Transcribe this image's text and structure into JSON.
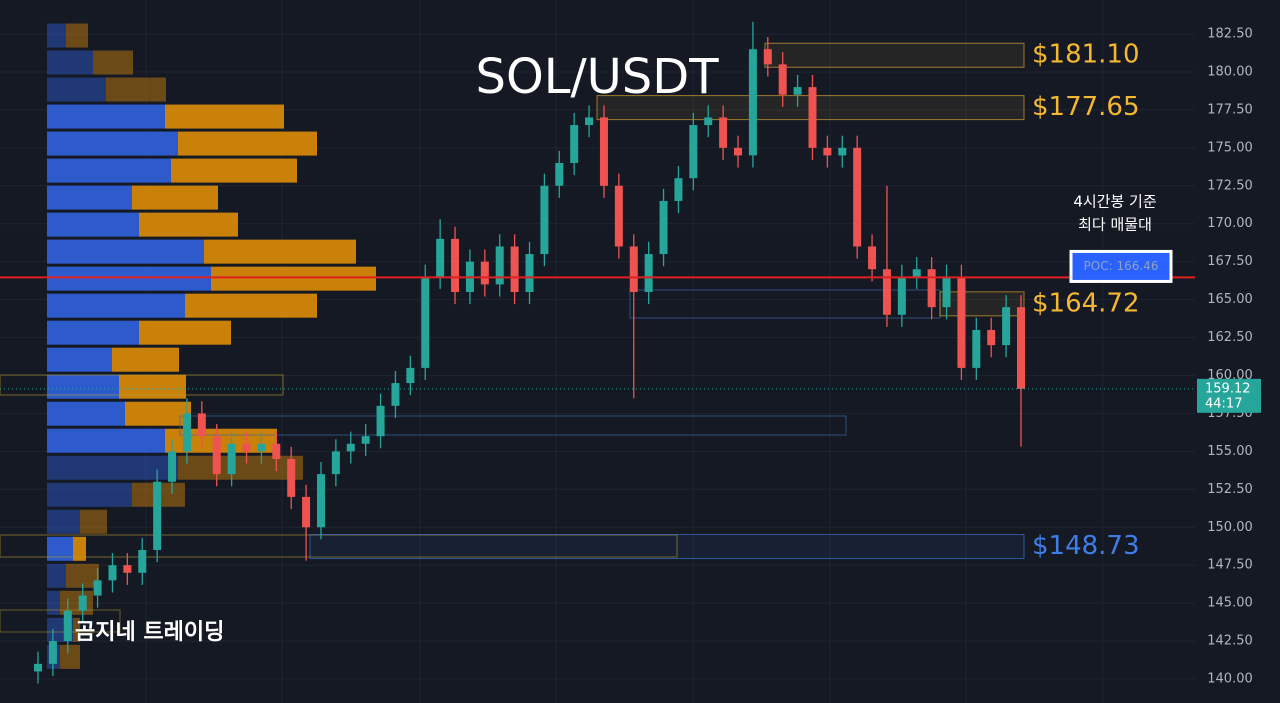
{
  "chart_data": {
    "type": "candlestick",
    "title": "SOL/USDT",
    "watermark": "곰지네 트레이딩",
    "ylim": [
      138.42,
      184.74
    ],
    "yticks": [
      {
        "value": 140,
        "label": "140.00"
      },
      {
        "value": 142.5,
        "label": "142.50"
      },
      {
        "value": 145,
        "label": "145.00"
      },
      {
        "value": 147.5,
        "label": "147.50"
      },
      {
        "value": 150,
        "label": "150.00"
      },
      {
        "value": 152.5,
        "label": "152.50"
      },
      {
        "value": 155,
        "label": "155.00"
      },
      {
        "value": 157.5,
        "label": "157.50"
      },
      {
        "value": 160,
        "label": "160.00"
      },
      {
        "value": 162.5,
        "label": "162.50"
      },
      {
        "value": 165,
        "label": "165.00"
      },
      {
        "value": 167.5,
        "label": "167.50"
      },
      {
        "value": 170,
        "label": "170.00"
      },
      {
        "value": 172.5,
        "label": "172.50"
      },
      {
        "value": 175,
        "label": "175.00"
      },
      {
        "value": 177.5,
        "label": "177.50"
      },
      {
        "value": 180,
        "label": "180.00"
      },
      {
        "value": 182.5,
        "label": "182.50"
      }
    ],
    "grid": true,
    "up_color": "#26a69a",
    "down_color": "#ef5350",
    "open": [
      140.5,
      141.0,
      142.5,
      144.5,
      145.5,
      146.5,
      147.5,
      147.0,
      148.5,
      153.0,
      155.0,
      157.5,
      156.0,
      153.5,
      155.5,
      155.0,
      155.5,
      154.5,
      152.0,
      150.0,
      153.5,
      155.0,
      155.5,
      156.0,
      158.0,
      159.5,
      160.5,
      166.5,
      169.0,
      165.5,
      167.5,
      166.0,
      168.5,
      165.5,
      168.0,
      172.5,
      174.0,
      176.5,
      177.0,
      172.5,
      168.5,
      165.5,
      168.0,
      171.5,
      173.0,
      176.5,
      177.0,
      175.0,
      174.5,
      181.5,
      180.5,
      178.5,
      179.0,
      175.0,
      174.5,
      175.0,
      168.5,
      167.0,
      164.0,
      166.5,
      167.0,
      164.5,
      166.5,
      160.5,
      163.0,
      162.0,
      164.5
    ],
    "high": [
      141.8,
      143.3,
      145.3,
      146.3,
      147.3,
      148.3,
      148.3,
      149.3,
      153.8,
      155.8,
      158.5,
      158.3,
      156.8,
      156.3,
      156.3,
      156.3,
      156.3,
      155.3,
      152.8,
      154.3,
      155.8,
      156.3,
      156.8,
      158.8,
      160.3,
      161.3,
      167.3,
      170.3,
      169.8,
      168.3,
      168.3,
      169.3,
      169.3,
      168.8,
      173.3,
      174.8,
      177.3,
      177.8,
      177.8,
      173.3,
      169.3,
      168.8,
      172.3,
      173.8,
      177.3,
      177.8,
      177.8,
      175.8,
      183.3,
      182.3,
      181.3,
      179.8,
      179.8,
      175.8,
      175.8,
      175.8,
      169.3,
      172.5,
      167.3,
      167.8,
      167.8,
      167.3,
      167.3,
      163.8,
      163.8,
      165.3,
      165.3
    ],
    "low": [
      139.7,
      140.2,
      141.7,
      143.7,
      144.7,
      145.7,
      146.2,
      146.2,
      147.7,
      152.2,
      154.2,
      155.2,
      152.7,
      152.7,
      154.2,
      154.2,
      153.7,
      151.2,
      147.8,
      149.2,
      152.7,
      154.2,
      154.7,
      155.2,
      157.2,
      158.7,
      159.7,
      165.7,
      164.7,
      164.7,
      165.2,
      165.2,
      164.7,
      164.7,
      167.2,
      171.7,
      173.2,
      175.7,
      171.7,
      167.7,
      158.5,
      164.7,
      167.2,
      170.7,
      172.2,
      175.7,
      174.2,
      173.7,
      173.7,
      179.7,
      177.7,
      177.7,
      174.2,
      173.7,
      173.7,
      167.7,
      166.2,
      163.2,
      163.2,
      165.7,
      163.7,
      163.7,
      159.7,
      159.7,
      161.2,
      161.2,
      155.3
    ],
    "close": [
      141.0,
      142.5,
      144.5,
      145.5,
      146.5,
      147.5,
      147.0,
      148.5,
      153.0,
      155.0,
      157.5,
      156.0,
      153.5,
      155.5,
      155.0,
      155.5,
      154.5,
      152.0,
      150.0,
      153.5,
      155.0,
      155.5,
      156.0,
      158.0,
      159.5,
      160.5,
      166.5,
      169.0,
      165.5,
      167.5,
      166.0,
      168.5,
      165.5,
      168.0,
      172.5,
      174.0,
      176.5,
      177.0,
      172.5,
      168.5,
      165.5,
      168.0,
      171.5,
      173.0,
      176.5,
      177.0,
      175.0,
      174.5,
      181.5,
      180.5,
      178.5,
      179.0,
      175.0,
      174.5,
      175.0,
      168.5,
      167.0,
      164.0,
      166.5,
      167.0,
      164.5,
      166.5,
      160.5,
      163.0,
      162.0,
      164.5,
      159.12
    ],
    "last_price": 159.12,
    "countdown": "44:17",
    "volume_profile": {
      "bins": [
        183.29,
        181.51,
        179.73,
        177.95,
        176.17,
        174.39,
        172.61,
        170.83,
        169.05,
        167.27,
        165.49,
        163.71,
        161.93,
        160.15,
        158.37,
        156.59,
        154.81,
        153.03,
        151.25,
        149.47,
        147.69,
        145.91,
        144.13,
        142.35,
        140.57
      ],
      "series": [
        {
          "name": "buy",
          "color": "#2f5fd6",
          "values": [
            19,
            46,
            59,
            118,
            131,
            124,
            85,
            92,
            157,
            164,
            138,
            92,
            65,
            72,
            78,
            118,
            131,
            85,
            33,
            26,
            19,
            13,
            26,
            13
          ]
        },
        {
          "name": "sell",
          "color": "#d4870a",
          "values": [
            22,
            40,
            60,
            119,
            139,
            126,
            86,
            99,
            152,
            165,
            132,
            92,
            67,
            67,
            66,
            112,
            125,
            53,
            27,
            13,
            33,
            33,
            7,
            20
          ]
        }
      ]
    },
    "poc": {
      "value": 166.46,
      "label": "POC: 166.46"
    },
    "poc_note": [
      "4시간봉 기준",
      "최다 매물대"
    ],
    "zones": [
      {
        "price": 181.1,
        "label": "$181.10",
        "color": "#f5b731"
      },
      {
        "price": 177.65,
        "label": "$177.65",
        "color": "#f5b731"
      },
      {
        "price": 164.72,
        "label": "$164.72",
        "color": "#f5b731"
      },
      {
        "price": 148.73,
        "label": "$148.73",
        "color": "#3f7ee8"
      }
    ]
  }
}
